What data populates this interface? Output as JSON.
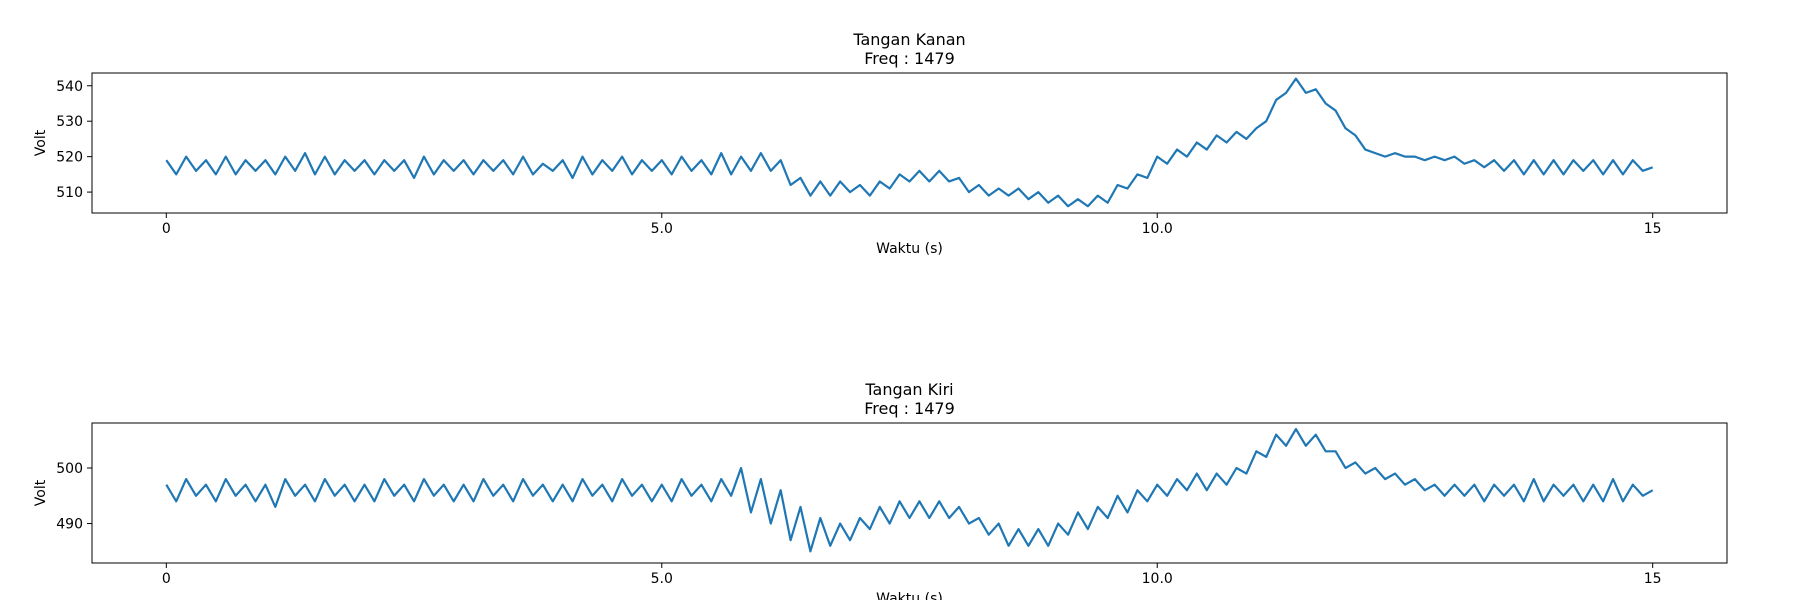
{
  "chart_data": [
    {
      "type": "line",
      "title": "Tangan Kanan",
      "subtitle": "Freq : 1479",
      "xlabel": "Waktu (s)",
      "ylabel": "Volt",
      "x": [
        0,
        0.1,
        0.2,
        0.3,
        0.4,
        0.5,
        0.6,
        0.7,
        0.8,
        0.9,
        1,
        1.1,
        1.2,
        1.3,
        1.4,
        1.5,
        1.6,
        1.7,
        1.8,
        1.9,
        2,
        2.1,
        2.2,
        2.3,
        2.4,
        2.5,
        2.6,
        2.7,
        2.8,
        2.9,
        3,
        3.1,
        3.2,
        3.3,
        3.4,
        3.5,
        3.6,
        3.7,
        3.8,
        3.9,
        4,
        4.1,
        4.2,
        4.3,
        4.4,
        4.5,
        4.6,
        4.7,
        4.8,
        4.9,
        5,
        5.1,
        5.2,
        5.3,
        5.4,
        5.5,
        5.6,
        5.7,
        5.8,
        5.9,
        6,
        6.1,
        6.2,
        6.3,
        6.4,
        6.5,
        6.6,
        6.7,
        6.8,
        6.9,
        7,
        7.1,
        7.2,
        7.3,
        7.4,
        7.5,
        7.6,
        7.7,
        7.8,
        7.9,
        8,
        8.1,
        8.2,
        8.3,
        8.4,
        8.5,
        8.6,
        8.7,
        8.8,
        8.9,
        9,
        9.1,
        9.2,
        9.3,
        9.4,
        9.5,
        9.6,
        9.7,
        9.8,
        9.9,
        10,
        10.1,
        10.2,
        10.3,
        10.4,
        10.5,
        10.6,
        10.7,
        10.8,
        10.9,
        11,
        11.1,
        11.2,
        11.3,
        11.4,
        11.5,
        11.6,
        11.7,
        11.8,
        11.9,
        12,
        12.1,
        12.2,
        12.3,
        12.4,
        12.5,
        12.6,
        12.7,
        12.8,
        12.9,
        13,
        13.1,
        13.2,
        13.3,
        13.4,
        13.5,
        13.6,
        13.7,
        13.8,
        13.9,
        14,
        14.1,
        14.2,
        14.3,
        14.4,
        14.5,
        14.6,
        14.7,
        14.8,
        14.9,
        15
      ],
      "series": [
        {
          "color": "#1f77b4",
          "values": [
            519,
            515,
            520,
            516,
            519,
            515,
            520,
            515,
            519,
            516,
            519,
            515,
            520,
            516,
            521,
            515,
            520,
            515,
            519,
            516,
            519,
            515,
            519,
            516,
            519,
            514,
            520,
            515,
            519,
            516,
            519,
            515,
            519,
            516,
            519,
            515,
            520,
            515,
            518,
            516,
            519,
            514,
            520,
            515,
            519,
            516,
            520,
            515,
            519,
            516,
            519,
            515,
            520,
            516,
            519,
            515,
            521,
            515,
            520,
            516,
            521,
            516,
            519,
            512,
            514,
            509,
            513,
            509,
            513,
            510,
            512,
            509,
            513,
            511,
            515,
            513,
            516,
            513,
            516,
            513,
            514,
            510,
            512,
            509,
            511,
            509,
            511,
            508,
            510,
            507,
            509,
            506,
            508,
            506,
            509,
            507,
            512,
            511,
            515,
            514,
            520,
            518,
            522,
            520,
            524,
            522,
            526,
            524,
            527,
            525,
            528,
            530,
            536,
            538,
            542,
            538,
            539,
            535,
            533,
            528,
            526,
            522,
            521,
            520,
            521,
            520,
            520,
            519,
            520,
            519,
            520,
            518,
            519,
            517,
            519,
            516,
            519,
            515,
            519,
            515,
            519,
            515,
            519,
            516,
            519,
            515,
            519,
            515,
            519,
            516,
            517
          ]
        }
      ],
      "xlim": [
        -0.75,
        15.75
      ],
      "ylim": [
        504.1,
        543.6
      ],
      "xticks": [
        0,
        {
          "value": 5,
          "label": "5.0"
        },
        {
          "value": 10,
          "label": "10.0"
        },
        15
      ],
      "yticks": [
        510,
        520,
        530,
        540
      ]
    },
    {
      "type": "line",
      "title": "Tangan Kiri",
      "subtitle": "Freq :  1479",
      "xlabel": "Waktu (s)",
      "ylabel": "Volt",
      "x": [
        0,
        0.1,
        0.2,
        0.3,
        0.4,
        0.5,
        0.6,
        0.7,
        0.8,
        0.9,
        1,
        1.1,
        1.2,
        1.3,
        1.4,
        1.5,
        1.6,
        1.7,
        1.8,
        1.9,
        2,
        2.1,
        2.2,
        2.3,
        2.4,
        2.5,
        2.6,
        2.7,
        2.8,
        2.9,
        3,
        3.1,
        3.2,
        3.3,
        3.4,
        3.5,
        3.6,
        3.7,
        3.8,
        3.9,
        4,
        4.1,
        4.2,
        4.3,
        4.4,
        4.5,
        4.6,
        4.7,
        4.8,
        4.9,
        5,
        5.1,
        5.2,
        5.3,
        5.4,
        5.5,
        5.6,
        5.7,
        5.8,
        5.9,
        6,
        6.1,
        6.2,
        6.3,
        6.4,
        6.5,
        6.6,
        6.7,
        6.8,
        6.9,
        7,
        7.1,
        7.2,
        7.3,
        7.4,
        7.5,
        7.6,
        7.7,
        7.8,
        7.9,
        8,
        8.1,
        8.2,
        8.3,
        8.4,
        8.5,
        8.6,
        8.7,
        8.8,
        8.9,
        9,
        9.1,
        9.2,
        9.3,
        9.4,
        9.5,
        9.6,
        9.7,
        9.8,
        9.9,
        10,
        10.1,
        10.2,
        10.3,
        10.4,
        10.5,
        10.6,
        10.7,
        10.8,
        10.9,
        11,
        11.1,
        11.2,
        11.3,
        11.4,
        11.5,
        11.6,
        11.7,
        11.8,
        11.9,
        12,
        12.1,
        12.2,
        12.3,
        12.4,
        12.5,
        12.6,
        12.7,
        12.8,
        12.9,
        13,
        13.1,
        13.2,
        13.3,
        13.4,
        13.5,
        13.6,
        13.7,
        13.8,
        13.9,
        14,
        14.1,
        14.2,
        14.3,
        14.4,
        14.5,
        14.6,
        14.7,
        14.8,
        14.9,
        15
      ],
      "series": [
        {
          "color": "#1f77b4",
          "values": [
            497,
            494,
            498,
            495,
            497,
            494,
            498,
            495,
            497,
            494,
            497,
            493,
            498,
            495,
            497,
            494,
            498,
            495,
            497,
            494,
            497,
            494,
            498,
            495,
            497,
            494,
            498,
            495,
            497,
            494,
            497,
            494,
            498,
            495,
            497,
            494,
            498,
            495,
            497,
            494,
            497,
            494,
            498,
            495,
            497,
            494,
            498,
            495,
            497,
            494,
            497,
            494,
            498,
            495,
            497,
            494,
            498,
            495,
            500,
            492,
            498,
            490,
            496,
            487,
            493,
            485,
            491,
            486,
            490,
            487,
            491,
            489,
            493,
            490,
            494,
            491,
            494,
            491,
            494,
            491,
            493,
            490,
            491,
            488,
            490,
            486,
            489,
            486,
            489,
            486,
            490,
            488,
            492,
            489,
            493,
            491,
            495,
            492,
            496,
            494,
            497,
            495,
            498,
            496,
            499,
            496,
            499,
            497,
            500,
            499,
            503,
            502,
            506,
            504,
            507,
            504,
            506,
            503,
            503,
            500,
            501,
            499,
            500,
            498,
            499,
            497,
            498,
            496,
            497,
            495,
            497,
            495,
            497,
            494,
            497,
            495,
            497,
            494,
            498,
            494,
            497,
            495,
            497,
            494,
            497,
            494,
            498,
            494,
            497,
            495,
            496
          ]
        }
      ],
      "xlim": [
        -0.75,
        15.75
      ],
      "ylim": [
        482.9,
        508.1
      ],
      "xticks": [
        0,
        {
          "value": 5,
          "label": "5.0"
        },
        {
          "value": 10,
          "label": "10.0"
        },
        15
      ],
      "yticks": [
        490,
        500
      ]
    }
  ]
}
